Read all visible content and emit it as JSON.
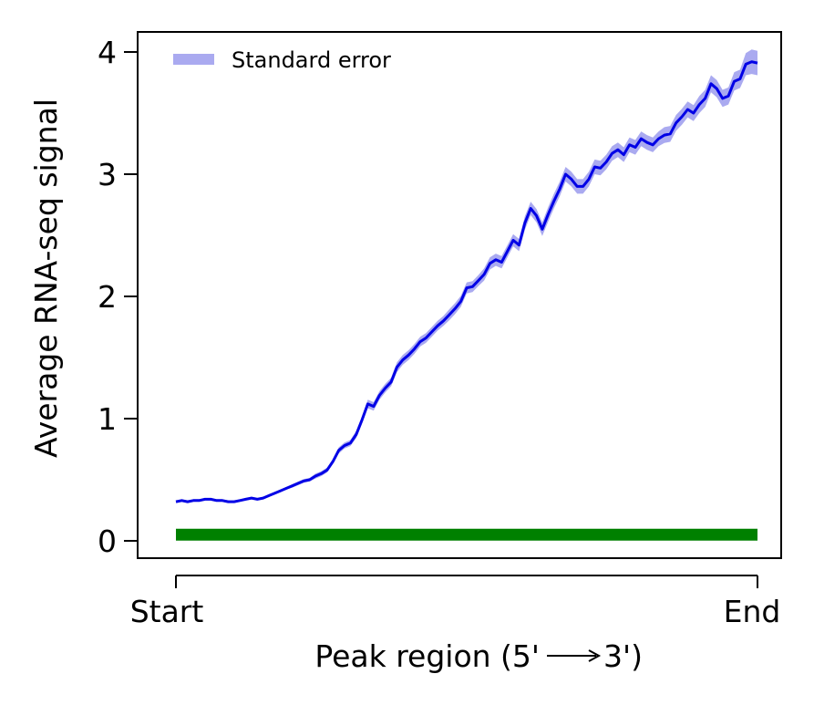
{
  "chart_data": {
    "type": "line",
    "title": "",
    "xlabel": "Peak region (5'",
    "xlabel_arrow_end": "3')",
    "ylabel": "Average RNA-seq signal",
    "x_tick_labels": [
      "Start",
      "End"
    ],
    "y_ticks": [
      0,
      1,
      2,
      3,
      4
    ],
    "x_range": [
      0,
      100
    ],
    "ylim": [
      -0.12,
      4.18
    ],
    "grid": false,
    "legend": {
      "placement": "top-left",
      "entries": [
        "Standard error"
      ]
    },
    "colors": {
      "line": "#0000e6",
      "band": "#aaaaf0",
      "baseline": "#008000"
    },
    "series": [
      {
        "x": [
          0,
          1,
          2,
          3,
          4,
          5,
          6,
          7,
          8,
          9,
          10,
          11,
          12,
          13,
          14,
          15,
          16,
          17,
          18,
          19,
          20,
          21,
          22,
          23,
          24,
          25,
          26,
          27,
          28,
          29,
          30,
          31,
          32,
          33,
          34,
          35,
          36,
          37,
          38,
          39,
          40,
          41,
          42,
          43,
          44,
          45,
          46,
          47,
          48,
          49,
          50,
          51,
          52,
          53,
          54,
          55,
          56,
          57,
          58,
          59,
          60,
          61,
          62,
          63,
          64,
          65,
          66,
          67,
          68,
          69,
          70,
          71,
          72,
          73,
          74,
          75,
          76,
          77,
          78,
          79,
          80,
          81,
          82,
          83,
          84,
          85,
          86,
          87,
          88,
          89,
          90,
          91,
          92,
          93,
          94,
          95,
          96,
          97,
          98,
          99,
          100
        ],
        "values": [
          0.32,
          0.33,
          0.32,
          0.33,
          0.33,
          0.34,
          0.34,
          0.33,
          0.33,
          0.32,
          0.32,
          0.33,
          0.34,
          0.35,
          0.34,
          0.35,
          0.37,
          0.39,
          0.41,
          0.43,
          0.45,
          0.47,
          0.49,
          0.5,
          0.53,
          0.55,
          0.58,
          0.65,
          0.74,
          0.78,
          0.8,
          0.87,
          0.99,
          1.12,
          1.1,
          1.19,
          1.25,
          1.3,
          1.42,
          1.48,
          1.52,
          1.57,
          1.63,
          1.66,
          1.71,
          1.76,
          1.8,
          1.85,
          1.9,
          1.96,
          2.07,
          2.08,
          2.13,
          2.18,
          2.27,
          2.3,
          2.28,
          2.37,
          2.46,
          2.42,
          2.6,
          2.72,
          2.66,
          2.55,
          2.67,
          2.78,
          2.88,
          3.0,
          2.96,
          2.9,
          2.9,
          2.96,
          3.06,
          3.05,
          3.1,
          3.17,
          3.2,
          3.16,
          3.24,
          3.22,
          3.29,
          3.26,
          3.24,
          3.29,
          3.32,
          3.33,
          3.42,
          3.47,
          3.53,
          3.5,
          3.57,
          3.62,
          3.74,
          3.7,
          3.62,
          3.64,
          3.76,
          3.78,
          3.9,
          3.92,
          3.91
        ],
        "errors": [
          0.01,
          0.01,
          0.01,
          0.01,
          0.01,
          0.01,
          0.01,
          0.01,
          0.01,
          0.01,
          0.01,
          0.01,
          0.01,
          0.01,
          0.01,
          0.01,
          0.01,
          0.01,
          0.01,
          0.01,
          0.015,
          0.015,
          0.015,
          0.015,
          0.02,
          0.02,
          0.02,
          0.02,
          0.025,
          0.025,
          0.025,
          0.03,
          0.03,
          0.035,
          0.035,
          0.035,
          0.035,
          0.035,
          0.04,
          0.04,
          0.04,
          0.04,
          0.04,
          0.04,
          0.04,
          0.04,
          0.04,
          0.045,
          0.045,
          0.045,
          0.045,
          0.045,
          0.045,
          0.05,
          0.05,
          0.05,
          0.05,
          0.05,
          0.05,
          0.05,
          0.055,
          0.055,
          0.055,
          0.055,
          0.06,
          0.06,
          0.06,
          0.06,
          0.06,
          0.06,
          0.06,
          0.06,
          0.06,
          0.06,
          0.06,
          0.06,
          0.06,
          0.06,
          0.06,
          0.06,
          0.06,
          0.06,
          0.06,
          0.06,
          0.065,
          0.065,
          0.065,
          0.065,
          0.065,
          0.065,
          0.07,
          0.07,
          0.07,
          0.07,
          0.07,
          0.07,
          0.075,
          0.075,
          0.09,
          0.1,
          0.1
        ]
      },
      {
        "x": [
          0,
          100
        ],
        "values": [
          0.05,
          0.05
        ]
      }
    ]
  }
}
